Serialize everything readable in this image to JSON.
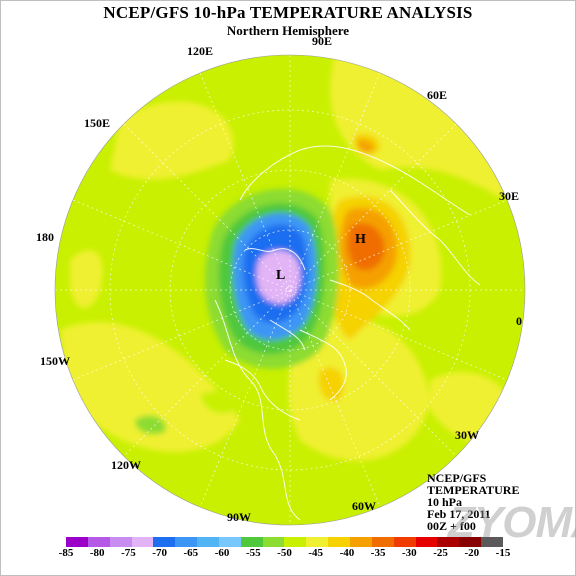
{
  "title": "NCEP/GFS 10-hPa TEMPERATURE ANALYSIS",
  "subtitle": "Northern Hemisphere",
  "longitude_labels": [
    {
      "label": "90E",
      "name": "lon-90e"
    },
    {
      "label": "120E",
      "name": "lon-120e"
    },
    {
      "label": "60E",
      "name": "lon-60e"
    },
    {
      "label": "150E",
      "name": "lon-150e"
    },
    {
      "label": "30E",
      "name": "lon-30e"
    },
    {
      "label": "180",
      "name": "lon-180"
    },
    {
      "label": "0",
      "name": "lon-0"
    },
    {
      "label": "150W",
      "name": "lon-150w"
    },
    {
      "label": "30W",
      "name": "lon-30w"
    },
    {
      "label": "120W",
      "name": "lon-120w"
    },
    {
      "label": "60W",
      "name": "lon-60w"
    },
    {
      "label": "90W",
      "name": "lon-90w"
    }
  ],
  "centers": {
    "high": "H",
    "low": "L"
  },
  "info": {
    "source": "NCEP/GFS",
    "variable": "TEMPERATURE",
    "level": "10 hPa",
    "date": "Feb 17, 2011",
    "time": "00Z + f00"
  },
  "watermark": "ZYOMA",
  "colorbar": {
    "ticks": [
      "-85",
      "-80",
      "-75",
      "-70",
      "-65",
      "-60",
      "-55",
      "-50",
      "-45",
      "-40",
      "-35",
      "-30",
      "-25",
      "-20",
      "-15"
    ],
    "colors": [
      "#9a00c8",
      "#b45ae6",
      "#c98cf0",
      "#e2b4f5",
      "#1e6ef0",
      "#3c96f5",
      "#50b4f5",
      "#78c8ff",
      "#50c83c",
      "#8cdc32",
      "#c8f000",
      "#f0f032",
      "#f5d200",
      "#f5a000",
      "#f06e00",
      "#f03c00",
      "#e60000",
      "#aa0000",
      "#880000",
      "#5a5a5a"
    ]
  }
}
